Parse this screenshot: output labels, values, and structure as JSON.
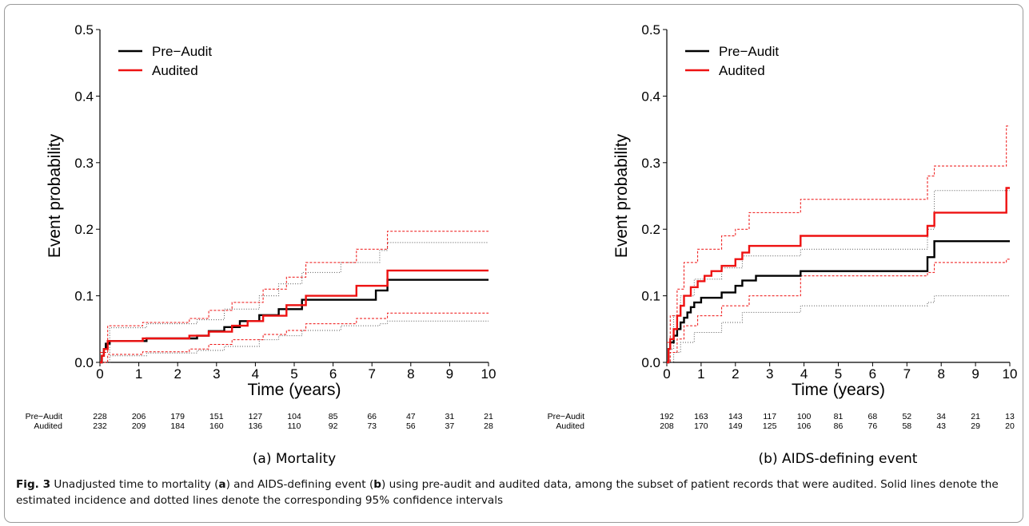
{
  "chart_data": [
    {
      "type": "line",
      "step": true,
      "subtitle": "(a) Mortality",
      "xlabel": "Time (years)",
      "ylabel": "Event probability",
      "xlim": [
        0,
        10
      ],
      "ylim": [
        0,
        0.5
      ],
      "xticks": [
        "0",
        "1",
        "2",
        "3",
        "4",
        "5",
        "6",
        "7",
        "8",
        "9",
        "10"
      ],
      "yticks": [
        "0.0",
        "0.1",
        "0.2",
        "0.3",
        "0.4",
        "0.5"
      ],
      "legend_position": "top-left",
      "grid": false,
      "series": [
        {
          "name": "Pre−Audit",
          "color": "#000000",
          "x": [
            0,
            0.05,
            0.1,
            0.15,
            0.25,
            1.2,
            2.5,
            2.8,
            3.2,
            3.6,
            4.1,
            4.6,
            5.2,
            7.1,
            7.4,
            10
          ],
          "y": [
            0,
            0.01,
            0.02,
            0.028,
            0.032,
            0.036,
            0.04,
            0.047,
            0.053,
            0.062,
            0.071,
            0.08,
            0.094,
            0.108,
            0.124,
            0.124
          ]
        },
        {
          "name": "Audited",
          "color": "#ee1111",
          "x": [
            0,
            0.05,
            0.1,
            0.2,
            1.1,
            2.3,
            2.8,
            3.4,
            3.8,
            4.2,
            4.8,
            5.3,
            6.6,
            7.4,
            10
          ],
          "y": [
            0,
            0.01,
            0.02,
            0.032,
            0.036,
            0.04,
            0.046,
            0.055,
            0.062,
            0.07,
            0.086,
            0.1,
            0.115,
            0.138,
            0.138
          ]
        }
      ],
      "ci": [
        {
          "color": "#555555",
          "dash": "1,2",
          "x": [
            0,
            0.25,
            1.2,
            2.5,
            3.2,
            4.1,
            4.6,
            5.2,
            6.2,
            7.2,
            7.4,
            10
          ],
          "y": [
            0.015,
            0.052,
            0.058,
            0.064,
            0.08,
            0.1,
            0.118,
            0.135,
            0.15,
            0.168,
            0.18,
            0.18
          ]
        },
        {
          "color": "#555555",
          "dash": "1,2",
          "x": [
            0,
            0.25,
            1.2,
            2.5,
            3.2,
            4.1,
            4.6,
            5.2,
            6.2,
            7.2,
            7.4,
            10
          ],
          "y": [
            0,
            0.01,
            0.014,
            0.018,
            0.024,
            0.034,
            0.04,
            0.048,
            0.055,
            0.058,
            0.062,
            0.062
          ]
        },
        {
          "color": "#ee1111",
          "dash": "3,2",
          "x": [
            0,
            0.2,
            1.1,
            2.3,
            2.8,
            3.4,
            4.2,
            4.8,
            5.3,
            6.6,
            7.4,
            10
          ],
          "y": [
            0.015,
            0.055,
            0.06,
            0.066,
            0.078,
            0.09,
            0.11,
            0.128,
            0.15,
            0.17,
            0.197,
            0.197
          ]
        },
        {
          "color": "#ee1111",
          "dash": "3,2",
          "x": [
            0,
            0.2,
            1.1,
            2.3,
            2.8,
            3.4,
            4.2,
            4.8,
            5.3,
            6.6,
            7.4,
            10
          ],
          "y": [
            0,
            0.012,
            0.016,
            0.02,
            0.027,
            0.034,
            0.042,
            0.048,
            0.058,
            0.066,
            0.074,
            0.074
          ]
        }
      ],
      "risk_table": {
        "times": [
          0,
          1,
          2,
          3,
          4,
          5,
          6,
          7,
          8,
          9,
          10
        ],
        "rows": [
          {
            "label": "Pre−Audit",
            "values": [
              "228",
              "206",
              "179",
              "151",
              "127",
              "104",
              "85",
              "66",
              "47",
              "31",
              "21"
            ]
          },
          {
            "label": "Audited",
            "values": [
              "232",
              "209",
              "184",
              "160",
              "136",
              "110",
              "92",
              "73",
              "56",
              "37",
              "28"
            ]
          }
        ]
      }
    },
    {
      "type": "line",
      "step": true,
      "subtitle": "(b) AIDS-defining event",
      "xlabel": "Time (years)",
      "ylabel": "Event probability",
      "xlim": [
        0,
        10
      ],
      "ylim": [
        0,
        0.5
      ],
      "xticks": [
        "0",
        "1",
        "2",
        "3",
        "4",
        "5",
        "6",
        "7",
        "8",
        "9",
        "10"
      ],
      "yticks": [
        "0.0",
        "0.1",
        "0.2",
        "0.3",
        "0.4",
        "0.5"
      ],
      "legend_position": "top-left",
      "grid": false,
      "series": [
        {
          "name": "Pre−Audit",
          "color": "#000000",
          "x": [
            0,
            0.05,
            0.1,
            0.2,
            0.3,
            0.4,
            0.5,
            0.6,
            0.7,
            0.8,
            1.0,
            1.6,
            2.0,
            2.2,
            2.6,
            3.9,
            7.6,
            7.8,
            10
          ],
          "y": [
            0,
            0.02,
            0.03,
            0.04,
            0.05,
            0.06,
            0.067,
            0.075,
            0.083,
            0.09,
            0.097,
            0.105,
            0.115,
            0.123,
            0.13,
            0.137,
            0.158,
            0.182,
            0.182
          ]
        },
        {
          "name": "Audited",
          "color": "#ee1111",
          "x": [
            0,
            0.05,
            0.1,
            0.2,
            0.3,
            0.4,
            0.5,
            0.7,
            0.9,
            1.1,
            1.3,
            1.6,
            2.0,
            2.2,
            2.4,
            3.9,
            7.6,
            7.8,
            9.9,
            10
          ],
          "y": [
            0,
            0.02,
            0.035,
            0.05,
            0.07,
            0.085,
            0.1,
            0.113,
            0.122,
            0.13,
            0.137,
            0.145,
            0.155,
            0.165,
            0.175,
            0.19,
            0.205,
            0.225,
            0.262,
            0.262
          ]
        }
      ],
      "ci": [
        {
          "color": "#555555",
          "dash": "1,2",
          "x": [
            0,
            0.2,
            0.4,
            0.8,
            1.6,
            2.2,
            3.9,
            7.6,
            7.8,
            10
          ],
          "y": [
            0.02,
            0.07,
            0.1,
            0.125,
            0.142,
            0.16,
            0.17,
            0.2,
            0.258,
            0.258
          ]
        },
        {
          "color": "#555555",
          "dash": "1,2",
          "x": [
            0,
            0.2,
            0.4,
            0.8,
            1.6,
            2.2,
            3.9,
            7.6,
            7.8,
            10
          ],
          "y": [
            0,
            0.015,
            0.03,
            0.045,
            0.06,
            0.075,
            0.085,
            0.09,
            0.1,
            0.1
          ]
        },
        {
          "color": "#ee1111",
          "dash": "3,2",
          "x": [
            0,
            0.1,
            0.3,
            0.5,
            0.9,
            1.6,
            2.0,
            2.4,
            3.9,
            7.6,
            7.8,
            9.9,
            10
          ],
          "y": [
            0.03,
            0.07,
            0.11,
            0.15,
            0.17,
            0.19,
            0.2,
            0.225,
            0.245,
            0.28,
            0.295,
            0.355,
            0.355
          ]
        },
        {
          "color": "#ee1111",
          "dash": "3,2",
          "x": [
            0,
            0.1,
            0.3,
            0.5,
            0.9,
            1.6,
            2.4,
            3.9,
            7.6,
            7.8,
            9.9,
            10
          ],
          "y": [
            0,
            0.015,
            0.035,
            0.055,
            0.07,
            0.085,
            0.1,
            0.13,
            0.135,
            0.15,
            0.155,
            0.155
          ]
        }
      ],
      "risk_table": {
        "times": [
          0,
          1,
          2,
          3,
          4,
          5,
          6,
          7,
          8,
          9,
          10
        ],
        "rows": [
          {
            "label": "Pre−Audit",
            "values": [
              "192",
              "163",
              "143",
              "117",
              "100",
              "81",
              "68",
              "52",
              "34",
              "21",
              "13"
            ]
          },
          {
            "label": "Audited",
            "values": [
              "208",
              "170",
              "149",
              "125",
              "106",
              "86",
              "76",
              "58",
              "43",
              "29",
              "20"
            ]
          }
        ]
      }
    }
  ],
  "caption": {
    "fig_label": "Fig. 3",
    "parts": [
      " Unadjusted time to mortality (",
      "a",
      ") and AIDS-defining event (",
      "b",
      ") using pre-audit and audited data, among the subset of patient records that were audited. Solid lines denote the estimated incidence and dotted lines denote the corresponding 95% confidence intervals"
    ]
  }
}
